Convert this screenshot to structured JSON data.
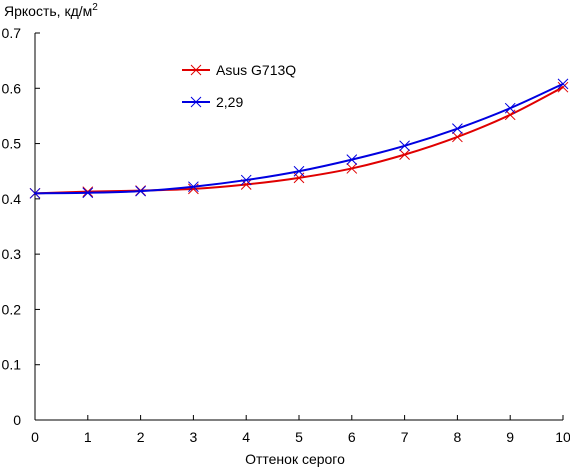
{
  "chart_data": {
    "type": "line",
    "ylabel": "Яркость, кд/м",
    "ylabel_superscript": "2",
    "xlabel": "Оттенок серого",
    "xlim": [
      0,
      10
    ],
    "ylim": [
      0,
      0.7
    ],
    "x_ticks": [
      "0",
      "1",
      "2",
      "3",
      "4",
      "5",
      "6",
      "7",
      "8",
      "9",
      "10"
    ],
    "y_ticks": [
      "0",
      "0.1",
      "0.2",
      "0.3",
      "0.4",
      "0.5",
      "0.6",
      "0.7"
    ],
    "grid": false,
    "legend": "top-left",
    "x": [
      0,
      1,
      2,
      3,
      4,
      5,
      6,
      7,
      8,
      9,
      10
    ],
    "series": [
      {
        "name": "Asus G713Q",
        "color": "#e00000",
        "marker": "x",
        "values": [
          0.41,
          0.413,
          0.415,
          0.418,
          0.426,
          0.438,
          0.455,
          0.48,
          0.512,
          0.552,
          0.602
        ]
      },
      {
        "name": "2,29",
        "color": "#0000e0",
        "marker": "x",
        "values": [
          0.41,
          0.411,
          0.414,
          0.422,
          0.434,
          0.45,
          0.471,
          0.496,
          0.527,
          0.564,
          0.608
        ]
      }
    ]
  }
}
